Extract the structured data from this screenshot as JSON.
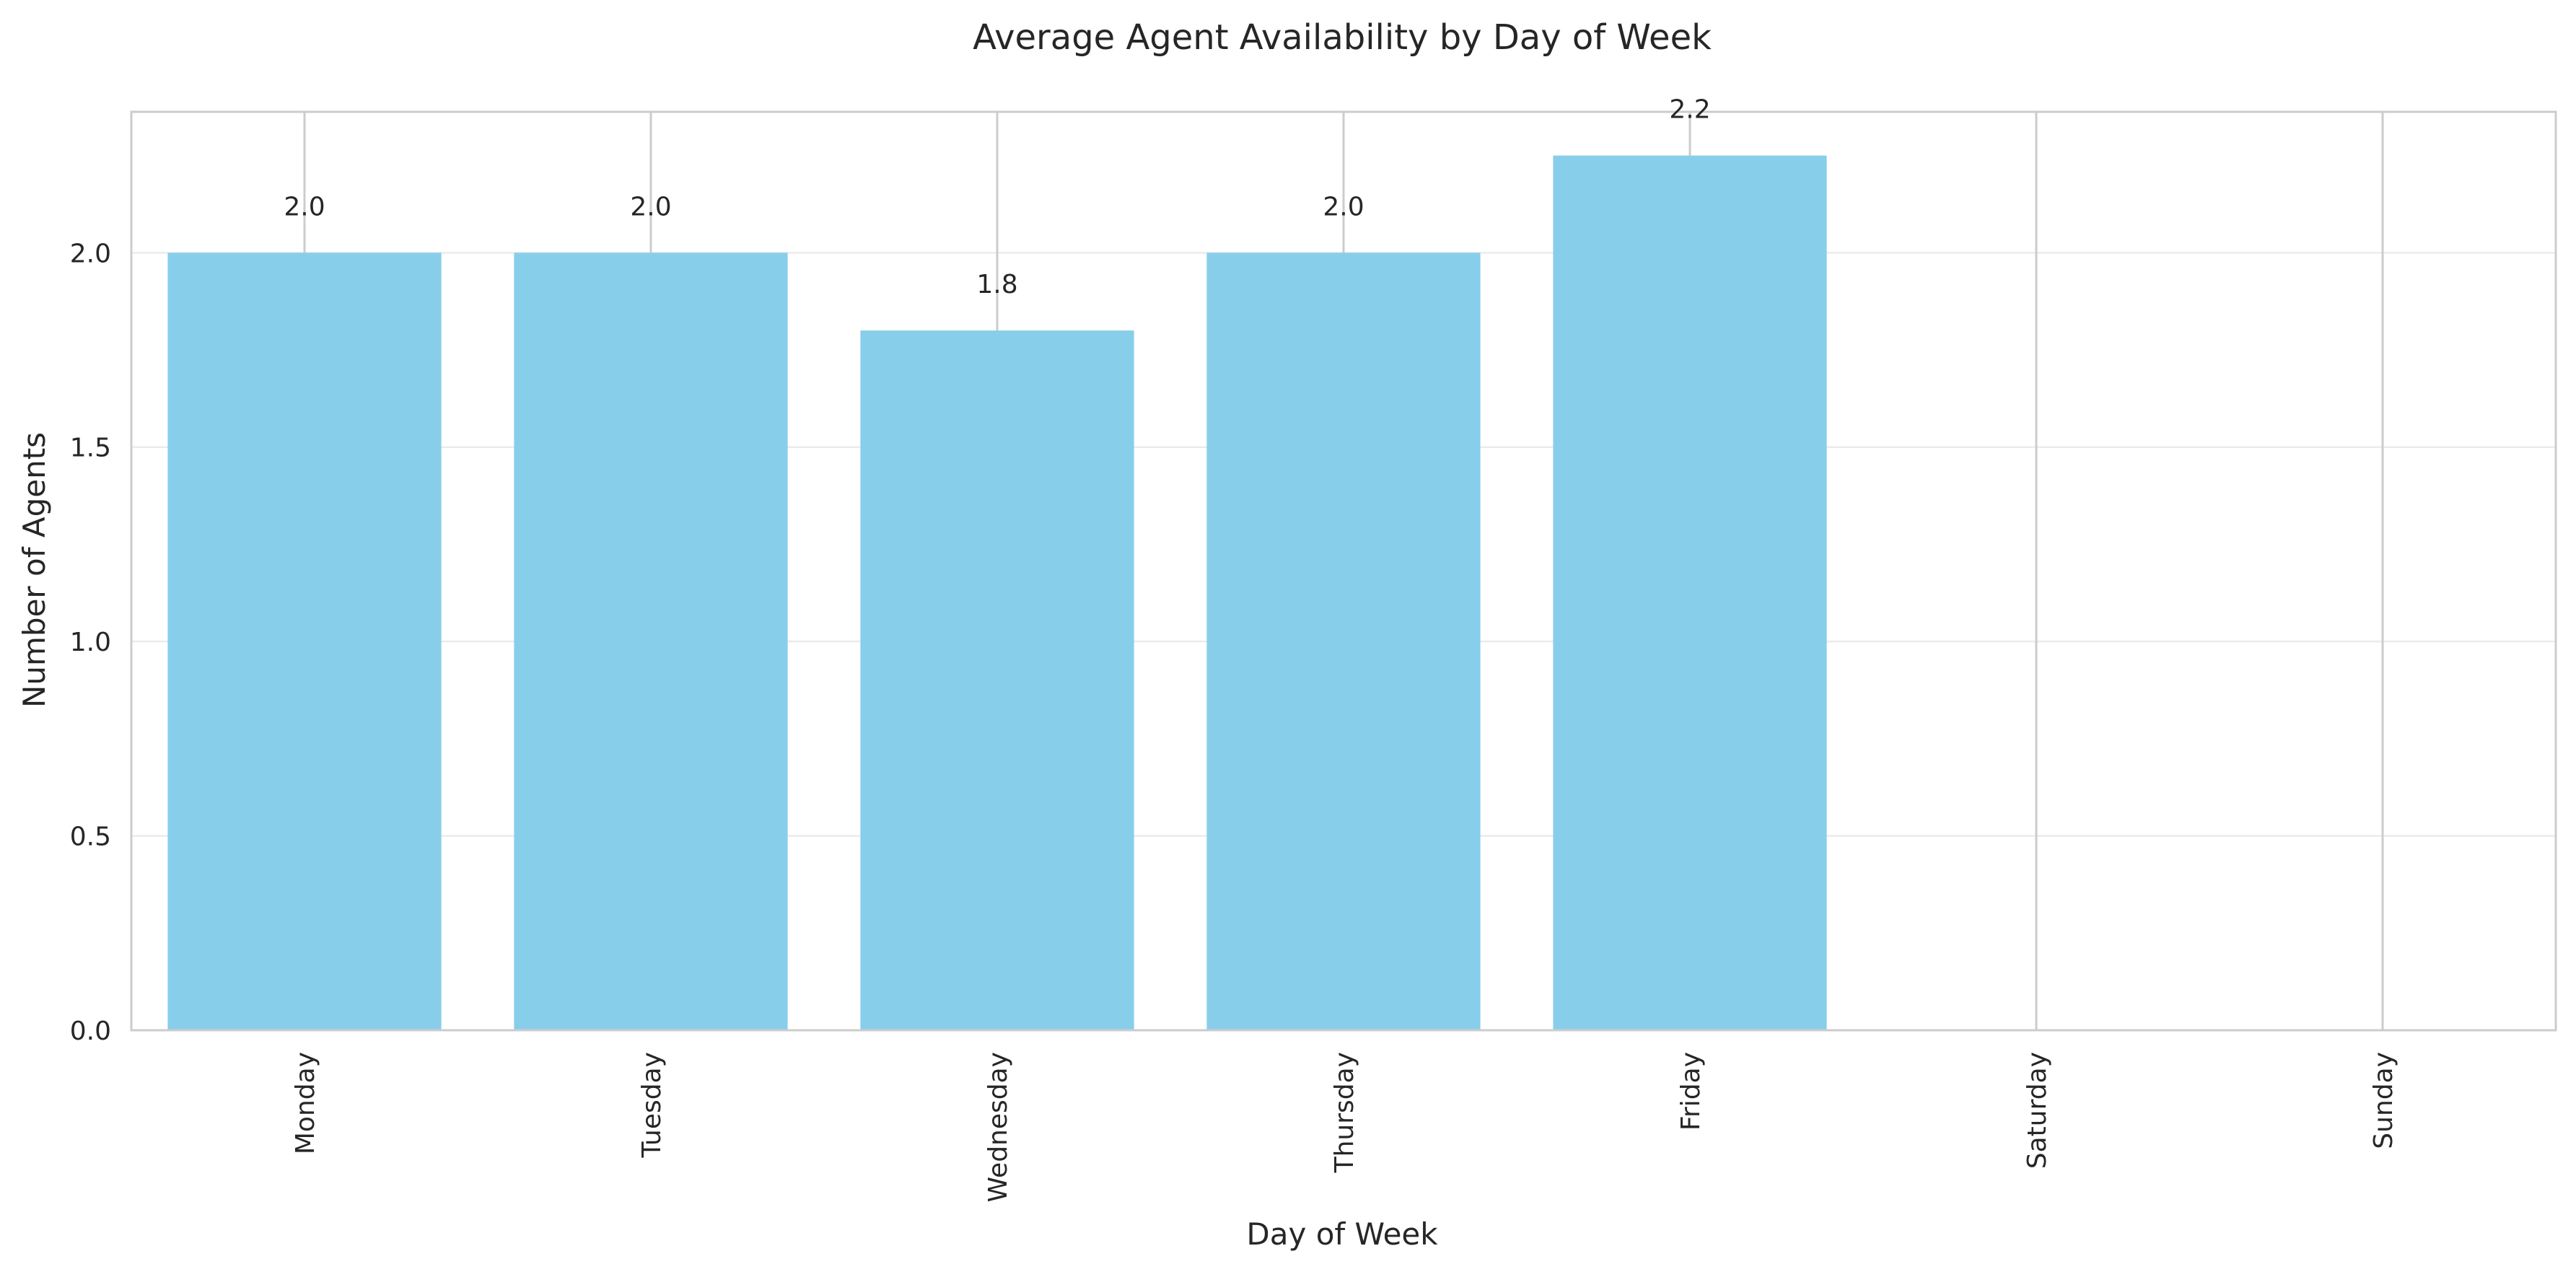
{
  "chart_data": {
    "type": "bar",
    "title": "Average Agent Availability by Day of Week",
    "xlabel": "Day of Week",
    "ylabel": "Number of Agents",
    "categories": [
      "Monday",
      "Tuesday",
      "Wednesday",
      "Thursday",
      "Friday",
      "Saturday",
      "Sunday"
    ],
    "values": [
      2.0,
      2.0,
      1.8,
      2.0,
      2.25,
      0,
      0
    ],
    "value_labels": [
      "2.0",
      "2.0",
      "1.8",
      "2.0",
      "2.2",
      "",
      ""
    ],
    "ylim": [
      0,
      2.3625
    ],
    "yticks": [
      0.0,
      0.5,
      1.0,
      1.5,
      2.0
    ],
    "ytick_labels": [
      "0.0",
      "0.5",
      "1.0",
      "1.5",
      "2.0"
    ],
    "grid": true,
    "bar_color": "#87CEEB"
  }
}
